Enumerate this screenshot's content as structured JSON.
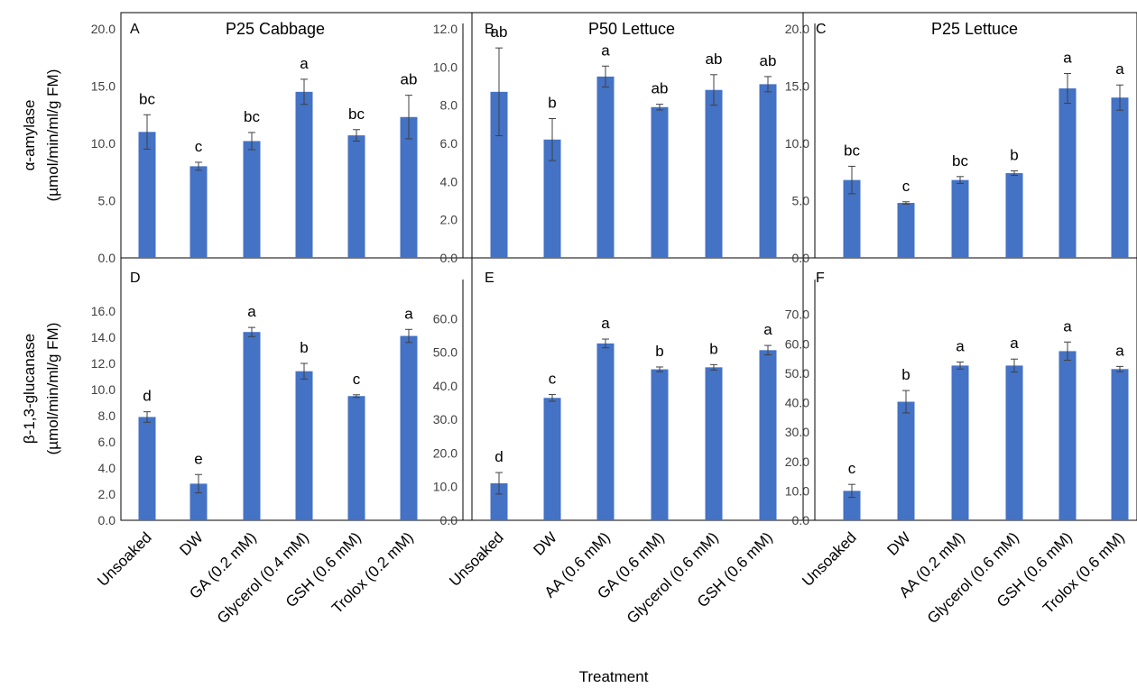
{
  "figure": {
    "x_title": "Treatment",
    "row_ylabels": [
      [
        "α-amylase",
        "(µmol/min/ml/g FM)"
      ],
      [
        "β-1,3-glucanase",
        "(µmol/min/ml/g FM)"
      ]
    ],
    "bar_color": "#4472C4"
  },
  "chart_data": [
    {
      "type": "bar",
      "panel": "A",
      "title": "P25 Cabbage",
      "categories": [
        "Unsoaked",
        "DW",
        "GA (0.2 mM)",
        "Glycerol (0.4 mM)",
        "GSH (0.6 mM)",
        "Trolox (0.2 mM)"
      ],
      "values": [
        11.0,
        8.0,
        10.2,
        14.5,
        10.7,
        12.3
      ],
      "errors": [
        1.5,
        0.35,
        0.75,
        1.1,
        0.5,
        1.9
      ],
      "significance": [
        "bc",
        "c",
        "bc",
        "a",
        "bc",
        "ab"
      ],
      "ylim": [
        0,
        20
      ],
      "yticks": [
        "0.0",
        "5.0",
        "10.0",
        "15.0",
        "20.0"
      ],
      "ylabel": "α-amylase (µmol/min/ml/g FM)"
    },
    {
      "type": "bar",
      "panel": "B",
      "title": "P50 Lettuce",
      "categories": [
        "Unsoaked",
        "DW",
        "AA (0.6 mM)",
        "GA (0.6 mM)",
        "Glycerol (0.6 mM)",
        "GSH (0.6 mM)"
      ],
      "values": [
        8.7,
        6.2,
        9.5,
        7.9,
        8.8,
        9.1
      ],
      "errors": [
        2.3,
        1.1,
        0.55,
        0.15,
        0.8,
        0.4
      ],
      "significance": [
        "ab",
        "b",
        "a",
        "ab",
        "ab",
        "ab"
      ],
      "ylim": [
        0,
        12
      ],
      "yticks": [
        "0.0",
        "2.0",
        "4.0",
        "6.0",
        "8.0",
        "10.0",
        "12.0"
      ]
    },
    {
      "type": "bar",
      "panel": "C",
      "title": "P25 Lettuce",
      "categories": [
        "Unsoaked",
        "DW",
        "AA (0.2 mM)",
        "Glycerol (0.6 mM)",
        "GSH (0.6 mM)",
        "Trolox (0.6 mM)"
      ],
      "values": [
        6.8,
        4.8,
        6.8,
        7.4,
        14.8,
        14.0
      ],
      "errors": [
        1.2,
        0.1,
        0.3,
        0.2,
        1.3,
        1.1
      ],
      "significance": [
        "bc",
        "c",
        "bc",
        "b",
        "a",
        "a"
      ],
      "ylim": [
        0,
        20
      ],
      "yticks": [
        "0.0",
        "5.0",
        "10.0",
        "15.0",
        "20.0"
      ]
    },
    {
      "type": "bar",
      "panel": "D",
      "categories": [
        "Unsoaked",
        "DW",
        "GA (0.2 mM)",
        "Glycerol (0.4 mM)",
        "GSH (0.6 mM)",
        "Trolox (0.2 mM)"
      ],
      "values": [
        7.9,
        2.8,
        14.4,
        11.4,
        9.5,
        14.1
      ],
      "errors": [
        0.4,
        0.7,
        0.35,
        0.6,
        0.1,
        0.5
      ],
      "significance": [
        "d",
        "e",
        "a",
        "b",
        "c",
        "a"
      ],
      "ylim": [
        0,
        18
      ],
      "yticks": [
        "0.0",
        "2.0",
        "4.0",
        "6.0",
        "8.0",
        "10.0",
        "12.0",
        "14.0",
        "16.0"
      ],
      "ylabel": "β-1,3-glucanase (µmol/min/ml/g FM)"
    },
    {
      "type": "bar",
      "panel": "E",
      "categories": [
        "Unsoaked",
        "DW",
        "AA (0.6 mM)",
        "GA (0.6 mM)",
        "Glycerol (0.6 mM)",
        "GSH (0.6 mM)"
      ],
      "values": [
        11.0,
        36.4,
        52.6,
        44.9,
        45.5,
        50.6
      ],
      "errors": [
        3.2,
        1.0,
        1.3,
        0.7,
        0.8,
        1.4
      ],
      "significance": [
        "d",
        "c",
        "a",
        "b",
        "b",
        "a"
      ],
      "ylim": [
        0,
        70
      ],
      "yticks": [
        "0.0",
        "10.0",
        "20.0",
        "30.0",
        "40.0",
        "50.0",
        "60.0"
      ]
    },
    {
      "type": "bar",
      "panel": "F",
      "categories": [
        "Unsoaked",
        "DW",
        "AA (0.2 mM)",
        "Glycerol (0.6 mM)",
        "GSH (0.6 mM)",
        "Trolox (0.6 mM)"
      ],
      "values": [
        10.0,
        40.3,
        52.6,
        52.6,
        57.5,
        51.4
      ],
      "errors": [
        2.2,
        3.8,
        1.2,
        2.2,
        3.1,
        0.9
      ],
      "significance": [
        "c",
        "b",
        "a",
        "a",
        "a",
        "a"
      ],
      "ylim": [
        0,
        80
      ],
      "yticks": [
        "0.0",
        "10.0",
        "20.0",
        "30.0",
        "40.0",
        "50.0",
        "60.0",
        "70.0"
      ]
    }
  ]
}
